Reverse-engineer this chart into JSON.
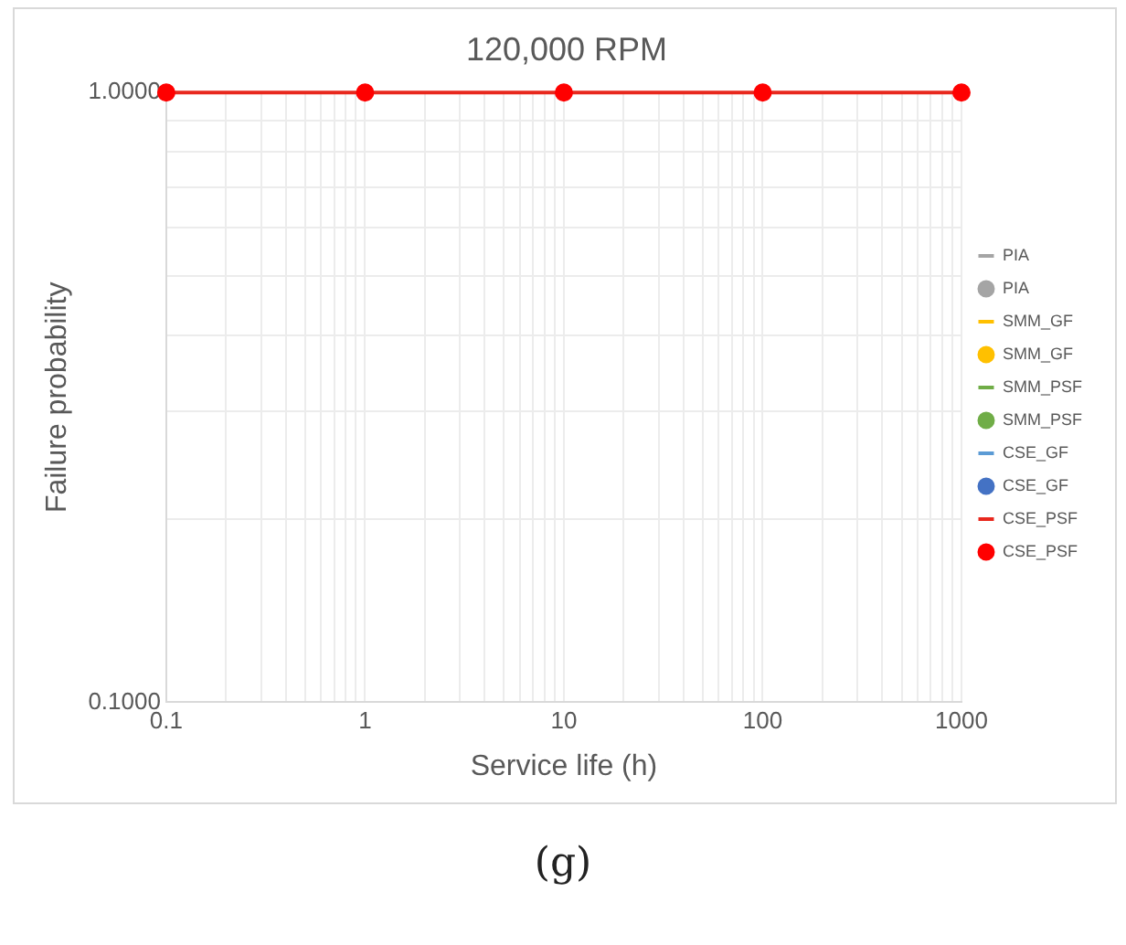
{
  "chart_data": {
    "type": "line",
    "title": "120,000 RPM",
    "xlabel": "Service life (h)",
    "ylabel": "Failure probability",
    "annotations": [
      "(g)"
    ],
    "x": [
      0.1,
      1,
      10,
      100,
      1000
    ],
    "log": "xy",
    "grid": true,
    "legend": "right",
    "xlim": [
      0.1,
      1000
    ],
    "ylim": [
      0.1,
      1
    ],
    "xticks": [
      0.1,
      {
        "value": 0.2,
        "label": null
      },
      {
        "value": 0.3,
        "label": null
      },
      {
        "value": 0.4,
        "label": null
      },
      {
        "value": 0.5,
        "label": null
      },
      {
        "value": 0.6,
        "label": null
      },
      {
        "value": 0.7,
        "label": null
      },
      {
        "value": 0.8,
        "label": null
      },
      {
        "value": 0.9,
        "label": null
      },
      1,
      {
        "value": 2,
        "label": null
      },
      {
        "value": 3,
        "label": null
      },
      {
        "value": 4,
        "label": null
      },
      {
        "value": 5,
        "label": null
      },
      {
        "value": 6,
        "label": null
      },
      {
        "value": 7,
        "label": null
      },
      {
        "value": 8,
        "label": null
      },
      {
        "value": 9,
        "label": null
      },
      10,
      {
        "value": 20,
        "label": null
      },
      {
        "value": 30,
        "label": null
      },
      {
        "value": 40,
        "label": null
      },
      {
        "value": 50,
        "label": null
      },
      {
        "value": 60,
        "label": null
      },
      {
        "value": 70,
        "label": null
      },
      {
        "value": 80,
        "label": null
      },
      {
        "value": 90,
        "label": null
      },
      100,
      {
        "value": 200,
        "label": null
      },
      {
        "value": 300,
        "label": null
      },
      {
        "value": 400,
        "label": null
      },
      {
        "value": 500,
        "label": null
      },
      {
        "value": 600,
        "label": null
      },
      {
        "value": 700,
        "label": null
      },
      {
        "value": 800,
        "label": null
      },
      {
        "value": 900,
        "label": null
      },
      1000
    ],
    "yticks": [
      {
        "value": 0.1,
        "label": "0.1000"
      },
      {
        "value": 0.2,
        "label": null
      },
      {
        "value": 0.3,
        "label": null
      },
      {
        "value": 0.4,
        "label": null
      },
      {
        "value": 0.5,
        "label": null
      },
      {
        "value": 0.6,
        "label": null
      },
      {
        "value": 0.7,
        "label": null
      },
      {
        "value": 0.8,
        "label": null
      },
      {
        "value": 0.9,
        "label": null
      },
      {
        "value": 1,
        "label": "1.0000"
      }
    ],
    "series": [
      {
        "name": "PIA",
        "type": "line",
        "marker": "none",
        "color": "#a5a5a5",
        "values": [
          null,
          null,
          null,
          null,
          null
        ]
      },
      {
        "name": "PIA",
        "type": "scatter",
        "marker": "circle",
        "color": "#a5a5a5",
        "values": [
          null,
          null,
          null,
          null,
          null
        ]
      },
      {
        "name": "SMM_GF",
        "type": "line",
        "marker": "none",
        "color": "#ffc000",
        "values": [
          null,
          null,
          null,
          null,
          null
        ]
      },
      {
        "name": "SMM_GF",
        "type": "scatter",
        "marker": "circle",
        "color": "#ffc000",
        "values": [
          null,
          null,
          null,
          null,
          null
        ]
      },
      {
        "name": "SMM_PSF",
        "type": "line",
        "marker": "none",
        "color": "#70ad47",
        "values": [
          null,
          null,
          null,
          null,
          null
        ]
      },
      {
        "name": "SMM_PSF",
        "type": "scatter",
        "marker": "circle",
        "color": "#70ad47",
        "values": [
          null,
          null,
          null,
          null,
          null
        ]
      },
      {
        "name": "CSE_GF",
        "type": "line",
        "marker": "none",
        "color": "#5b9bd5",
        "values": [
          null,
          null,
          null,
          null,
          null
        ]
      },
      {
        "name": "CSE_GF",
        "type": "scatter",
        "marker": "circle",
        "color": "#4472c4",
        "values": [
          null,
          null,
          null,
          null,
          null
        ]
      },
      {
        "name": "CSE_PSF",
        "type": "line",
        "marker": "none",
        "color": "#e8281e",
        "values": [
          1,
          1,
          1,
          1,
          1
        ]
      },
      {
        "name": "CSE_PSF",
        "type": "scatter",
        "marker": "circle",
        "color": "#ff0000",
        "values": [
          1,
          1,
          1,
          1,
          1
        ]
      }
    ]
  }
}
